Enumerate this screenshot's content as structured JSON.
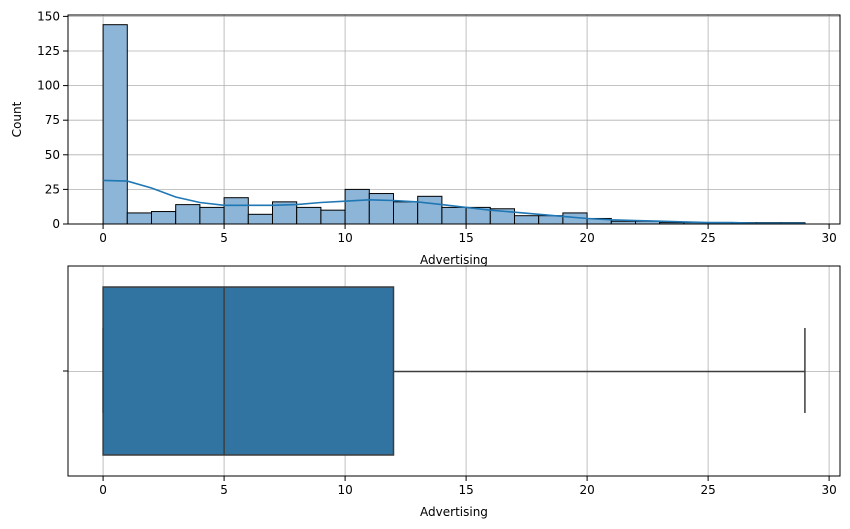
{
  "colors": {
    "hist_fill": "#8db5d8",
    "hist_edge": "#000000",
    "kde_line": "#1f77b4",
    "box_fill": "#3274a1",
    "box_edge": "#3d3d3d",
    "grid": "#b0b0b0",
    "axis": "#000000"
  },
  "chart_data": [
    {
      "type": "histogram",
      "title": "",
      "xlabel": "Advertising",
      "ylabel": "Count",
      "xlim": [
        -1.45,
        30.45
      ],
      "ylim": [
        0,
        151
      ],
      "xticks": [
        0,
        5,
        10,
        15,
        20,
        25,
        30
      ],
      "yticks": [
        0,
        25,
        50,
        75,
        100,
        125,
        150
      ],
      "grid": true,
      "bin_width": 1.0,
      "bin_start": 0,
      "counts": [
        144,
        8,
        9,
        14,
        12,
        19,
        7,
        16,
        12,
        10,
        25,
        22,
        16,
        20,
        12,
        12,
        11,
        6,
        6,
        8,
        4,
        2,
        2,
        1,
        1,
        1,
        1,
        1,
        1
      ],
      "kde": {
        "x": [
          0,
          1,
          2,
          3,
          4,
          5,
          6,
          7,
          8,
          9,
          10,
          11,
          12,
          13,
          14,
          15,
          16,
          17,
          18,
          19,
          20,
          21,
          22,
          23,
          24,
          25,
          26,
          27,
          28,
          29
        ],
        "y": [
          31.5,
          31,
          26,
          19.5,
          15.5,
          13.5,
          13.5,
          13.5,
          14,
          15.5,
          16.5,
          17.5,
          17,
          16,
          14,
          12,
          10,
          8.5,
          7,
          5.5,
          4,
          3,
          2.5,
          2,
          1.5,
          1,
          1,
          0.5,
          0.5,
          0.5
        ]
      }
    },
    {
      "type": "box",
      "title": "",
      "xlabel": "Advertising",
      "ylabel": "",
      "xlim": [
        -1.45,
        30.45
      ],
      "xticks": [
        0,
        5,
        10,
        15,
        20,
        25,
        30
      ],
      "grid": true,
      "min": 0,
      "q1": 0,
      "median": 5,
      "q3": 12,
      "max": 29
    }
  ]
}
